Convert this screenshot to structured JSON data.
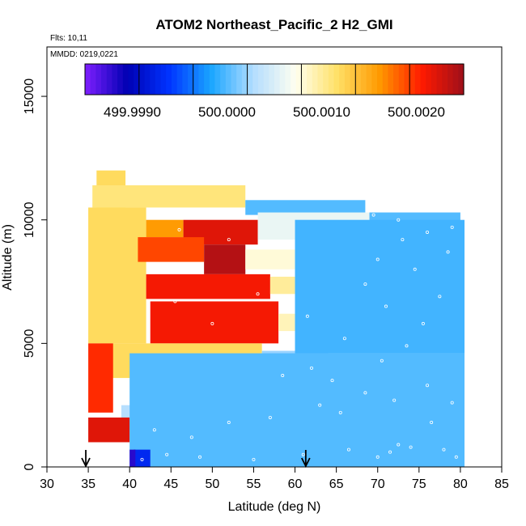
{
  "chart_data": {
    "type": "heatmap",
    "title": "ATOM2 Northeast_Pacific_2 H2_GMI",
    "annotations": [
      "Flts: 10,11",
      "MMDD: 0219,0221"
    ],
    "xlabel": "Latitude (deg N)",
    "ylabel": "Altitude (m)",
    "xlim": [
      30,
      85
    ],
    "ylim": [
      0,
      17000
    ],
    "x_ticks": [
      30,
      35,
      40,
      45,
      50,
      55,
      60,
      65,
      70,
      75,
      80,
      85
    ],
    "y_ticks": [
      0,
      5000,
      10000,
      15000
    ],
    "colorbar": {
      "range": [
        499.9985,
        500.0025
      ],
      "tick_values": [
        499.999,
        500.0,
        500.001,
        500.002
      ],
      "tick_labels": [
        "499.9990",
        "500.0000",
        "500.0010",
        "500.0020"
      ],
      "colors": [
        "#7f1fff",
        "#0000b3",
        "#0033ff",
        "#1aa6ff",
        "#b3ddff",
        "#fffff0",
        "#ffe066",
        "#ff9900",
        "#ff1a00",
        "#9e0f1a"
      ]
    },
    "arrows_x": [
      34.7,
      61.3
    ],
    "regions": [
      {
        "x": [
          36.0,
          39.5
        ],
        "y": [
          10500,
          12000
        ],
        "value": 500.0012
      },
      {
        "x": [
          35.5,
          54.0
        ],
        "y": [
          10500,
          11400
        ],
        "value": 500.0011
      },
      {
        "x": [
          54.0,
          68.5
        ],
        "y": [
          10200,
          10800
        ],
        "value": 500.0
      },
      {
        "x": [
          35.0,
          42.0
        ],
        "y": [
          5000,
          10500
        ],
        "value": 500.0012
      },
      {
        "x": [
          42.0,
          46.5
        ],
        "y": [
          9300,
          10000
        ],
        "value": 500.0016
      },
      {
        "x": [
          46.5,
          55.5
        ],
        "y": [
          9000,
          10000
        ],
        "value": 500.0022
      },
      {
        "x": [
          55.5,
          69.0
        ],
        "y": [
          9200,
          10300
        ],
        "value": 500.0006
      },
      {
        "x": [
          69.0,
          80.0
        ],
        "y": [
          9200,
          10300
        ],
        "value": 500.0
      },
      {
        "x": [
          41.0,
          49.0
        ],
        "y": [
          8300,
          9300
        ],
        "value": 500.0019
      },
      {
        "x": [
          49.0,
          54.0
        ],
        "y": [
          7800,
          9000
        ],
        "value": 500.0024
      },
      {
        "x": [
          54.0,
          68.0
        ],
        "y": [
          8000,
          8800
        ],
        "value": 500.0008
      },
      {
        "x": [
          42.0,
          57.0
        ],
        "y": [
          6800,
          7800
        ],
        "value": 500.0021
      },
      {
        "x": [
          57.0,
          70.0
        ],
        "y": [
          7000,
          7700
        ],
        "value": 500.001
      },
      {
        "x": [
          42.5,
          58.0
        ],
        "y": [
          5000,
          6700
        ],
        "value": 500.0021
      },
      {
        "x": [
          58.0,
          69.0
        ],
        "y": [
          5500,
          6200
        ],
        "value": 500.0009
      },
      {
        "x": [
          36.5,
          56.0
        ],
        "y": [
          3600,
          5000
        ],
        "value": 500.0012
      },
      {
        "x": [
          56.0,
          64.0
        ],
        "y": [
          3800,
          4700
        ],
        "value": 500.0002
      },
      {
        "x": [
          35.0,
          38.0
        ],
        "y": [
          2200,
          5000
        ],
        "value": 500.002
      },
      {
        "x": [
          39.0,
          51.0
        ],
        "y": [
          1500,
          2500
        ],
        "value": 500.0003
      },
      {
        "x": [
          51.0,
          55.0
        ],
        "y": [
          1500,
          2800
        ],
        "value": 500.0012
      },
      {
        "x": [
          35.0,
          40.0
        ],
        "y": [
          1000,
          2000
        ],
        "value": 500.0022
      },
      {
        "x": [
          40.0,
          80.5
        ],
        "y": [
          0,
          4600
        ],
        "value": 500.0
      },
      {
        "x": [
          60.0,
          80.5
        ],
        "y": [
          4600,
          10000
        ],
        "value": 499.99995
      },
      {
        "x": [
          40.5,
          42.5
        ],
        "y": [
          0,
          700
        ],
        "value": 499.9993
      },
      {
        "x": [
          40.0,
          40.7
        ],
        "y": [
          0,
          700
        ],
        "value": 499.9988
      }
    ],
    "points": [
      [
        41.5,
        300
      ],
      [
        44.5,
        500
      ],
      [
        48.5,
        400
      ],
      [
        55.0,
        300
      ],
      [
        61.0,
        500
      ],
      [
        66.5,
        700
      ],
      [
        70.0,
        400
      ],
      [
        71.5,
        600
      ],
      [
        72.5,
        900
      ],
      [
        74.0,
        800
      ],
      [
        78.0,
        700
      ],
      [
        79.5,
        400
      ],
      [
        43.0,
        1500
      ],
      [
        47.5,
        1200
      ],
      [
        52.0,
        1800
      ],
      [
        57.0,
        2000
      ],
      [
        63.0,
        2500
      ],
      [
        65.5,
        2200
      ],
      [
        68.5,
        3000
      ],
      [
        72.0,
        2700
      ],
      [
        76.0,
        3300
      ],
      [
        79.0,
        2600
      ],
      [
        70.5,
        4300
      ],
      [
        73.5,
        4900
      ],
      [
        66.0,
        5200
      ],
      [
        75.5,
        5800
      ],
      [
        71.0,
        6500
      ],
      [
        77.5,
        6900
      ],
      [
        68.5,
        7400
      ],
      [
        74.5,
        8000
      ],
      [
        70.0,
        8400
      ],
      [
        78.5,
        8700
      ],
      [
        73.0,
        9200
      ],
      [
        76.0,
        9500
      ],
      [
        46.0,
        9600
      ],
      [
        52.0,
        9200
      ],
      [
        47.5,
        8000
      ],
      [
        55.5,
        7000
      ],
      [
        50.0,
        5800
      ],
      [
        45.5,
        6700
      ],
      [
        61.5,
        6100
      ],
      [
        64.5,
        3500
      ],
      [
        69.5,
        10200
      ],
      [
        72.5,
        10000
      ],
      [
        79.0,
        9700
      ],
      [
        58.5,
        3700
      ],
      [
        62.0,
        4000
      ],
      [
        76.5,
        1800
      ]
    ]
  }
}
